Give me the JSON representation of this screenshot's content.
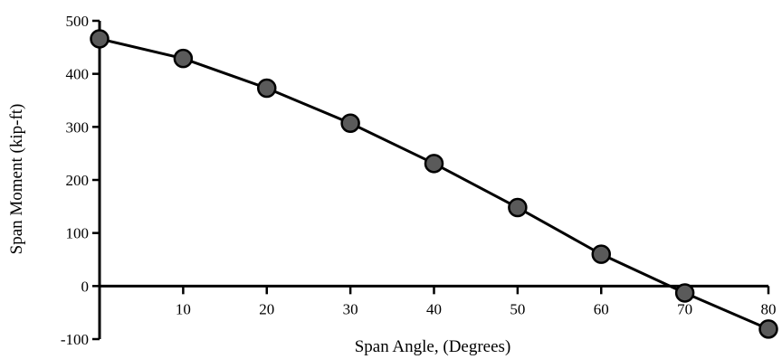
{
  "chart_data": {
    "type": "line",
    "title": "",
    "xlabel": "Span Angle, (Degrees)",
    "ylabel": "Span Moment (kip-ft)",
    "xlim": [
      0,
      80
    ],
    "ylim": [
      -100,
      500
    ],
    "x_ticks": [
      10,
      20,
      30,
      40,
      50,
      60,
      70,
      80
    ],
    "y_ticks": [
      -100,
      0,
      100,
      200,
      300,
      400,
      500
    ],
    "grid": false,
    "series": [
      {
        "x": [
          0,
          10,
          20,
          30,
          40,
          50,
          60,
          70,
          80
        ],
        "y": [
          466,
          429,
          373,
          307,
          231,
          148,
          60,
          -13,
          -81
        ]
      }
    ],
    "colors": {
      "line": "#000000",
      "marker": "#5a5a5a",
      "marker_edge": "#000000"
    }
  }
}
